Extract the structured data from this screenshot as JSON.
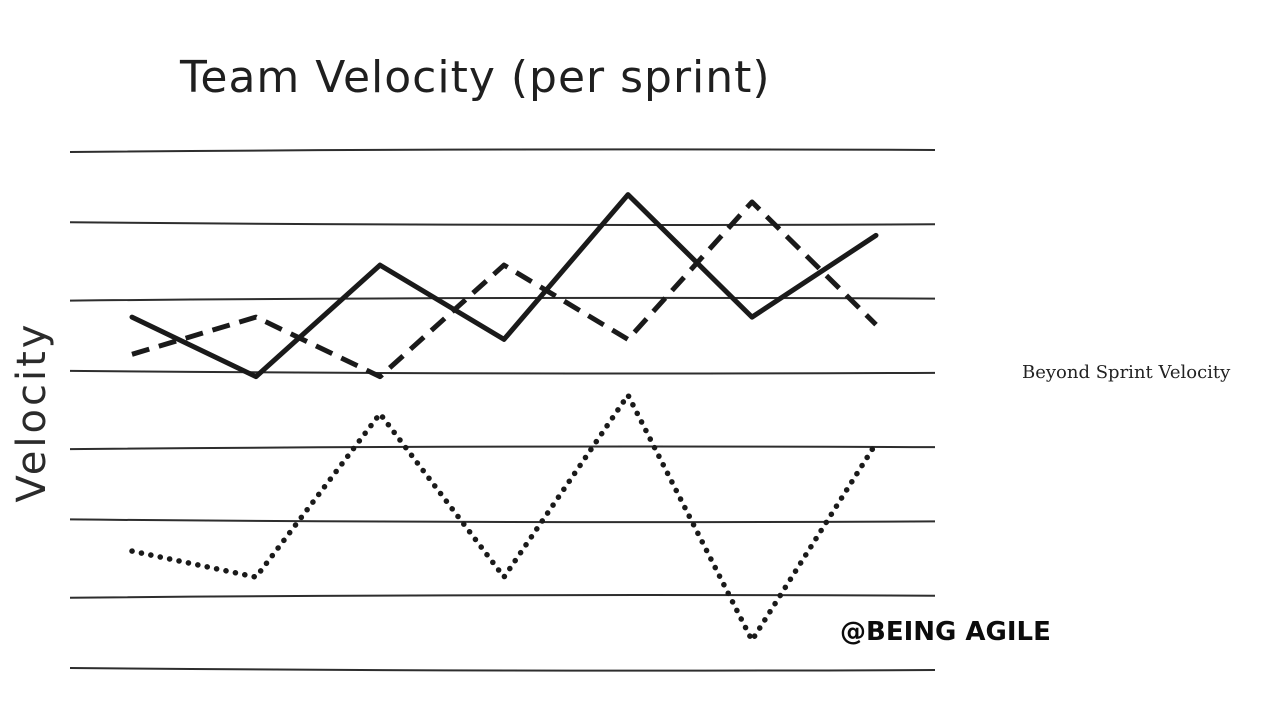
{
  "chart_data": {
    "type": "line",
    "title": "Team Velocity (per sprint)",
    "xlabel": "",
    "ylabel": "Velocity",
    "x": [
      1,
      2,
      3,
      4,
      5,
      6,
      7
    ],
    "ylim": [
      0,
      7
    ],
    "grid": true,
    "legend": "none",
    "series": [
      {
        "style": "solid",
        "values": [
          4.75,
          3.95,
          5.45,
          4.45,
          6.4,
          4.75,
          5.85
        ]
      },
      {
        "style": "dashed",
        "values": [
          4.25,
          4.75,
          3.95,
          5.45,
          4.45,
          6.3,
          4.65
        ]
      },
      {
        "style": "dotted",
        "values": [
          1.6,
          1.25,
          3.45,
          1.25,
          3.7,
          0.4,
          3.05
        ]
      }
    ]
  },
  "caption": "Beyond Sprint Velocity",
  "brand": "@BEING AGILE",
  "colors": {
    "ink": "#1a1a1a",
    "grid": "#2e2e2e",
    "background": "#ffffff"
  }
}
